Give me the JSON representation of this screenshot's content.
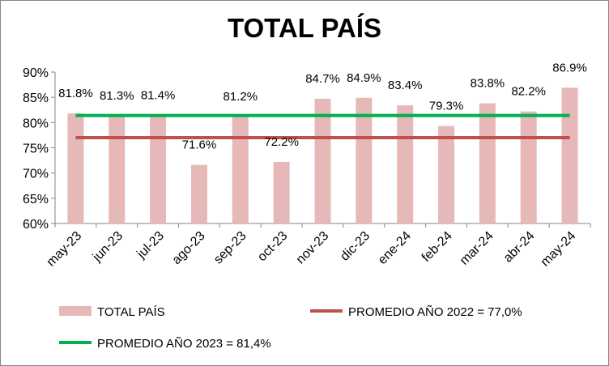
{
  "chart_data": {
    "type": "bar",
    "title": "TOTAL PAÍS",
    "categories": [
      "may-23",
      "jun-23",
      "jul-23",
      "ago-23",
      "sep-23",
      "oct-23",
      "nov-23",
      "dic-23",
      "ene-24",
      "feb-24",
      "mar-24",
      "abr-24",
      "may-24"
    ],
    "series": [
      {
        "name": "TOTAL PAÍS",
        "type": "bar",
        "color": "#e6b9b8",
        "values": [
          81.8,
          81.3,
          81.4,
          71.6,
          81.2,
          72.2,
          84.7,
          84.9,
          83.4,
          79.3,
          83.8,
          82.2,
          86.9
        ],
        "labels": [
          "81.8%",
          "81.3%",
          "81.4%",
          "71.6%",
          "81.2%",
          "72.2%",
          "84.7%",
          "84.9%",
          "83.4%",
          "79.3%",
          "83.8%",
          "82.2%",
          "86.9%"
        ]
      },
      {
        "name": "PROMEDIO AÑO 2022 = 77,0%",
        "type": "line",
        "color": "#c0504d",
        "value": 77.0
      },
      {
        "name": "PROMEDIO AÑO 2023 = 81,4%",
        "type": "line",
        "color": "#00b050",
        "value": 81.4
      }
    ],
    "ylim": [
      60,
      90
    ],
    "yticks": [
      60,
      65,
      70,
      75,
      80,
      85,
      90
    ],
    "ytick_labels": [
      "60%",
      "65%",
      "70%",
      "75%",
      "80%",
      "85%",
      "90%"
    ],
    "grid": false,
    "legend_position": "bottom"
  }
}
